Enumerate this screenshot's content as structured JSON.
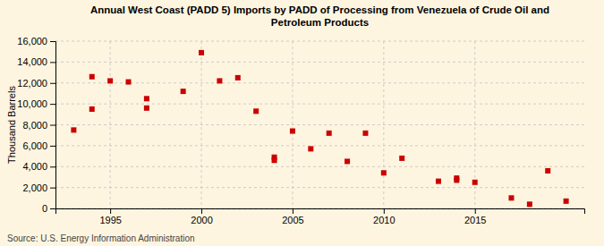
{
  "chart_data": {
    "type": "scatter",
    "title": "Annual West Coast (PADD 5) Imports by PADD of Processing from Venezuela of Crude Oil and\nPetroleum Products",
    "ylabel": "Thousand Barrels",
    "source": "Source: U.S. Energy Information Administration",
    "color": "#cc0000",
    "marker": "square",
    "grid": true,
    "x": [
      1993,
      1994,
      1994,
      1995,
      1996,
      1997,
      1997,
      1999,
      2000,
      2001,
      2002,
      2003,
      2004,
      2004,
      2005,
      2006,
      2007,
      2008,
      2009,
      2010,
      2011,
      2013,
      2014,
      2014,
      2015,
      2017,
      2018,
      2019,
      2020
    ],
    "values": [
      7500,
      12600,
      9500,
      12200,
      12100,
      10500,
      9600,
      11200,
      14900,
      12200,
      12500,
      9300,
      4900,
      4600,
      7400,
      5700,
      7200,
      4500,
      7200,
      3400,
      4800,
      2600,
      2700,
      2900,
      2500,
      1000,
      400,
      3600,
      700
    ],
    "xlim": [
      1992,
      2021
    ],
    "ylim": [
      0,
      16000
    ],
    "xticks": [
      1995,
      2000,
      2005,
      2010,
      2015
    ],
    "yticks": [
      0,
      {
        "value": 2000,
        "label": "2,000"
      },
      {
        "value": 4000,
        "label": "4,000"
      },
      {
        "value": 6000,
        "label": "6,000"
      },
      {
        "value": 8000,
        "label": "8,000"
      },
      {
        "value": 10000,
        "label": "10,000"
      },
      {
        "value": 12000,
        "label": "12,000"
      },
      {
        "value": 14000,
        "label": "14,000"
      },
      {
        "value": 16000,
        "label": "16,000"
      }
    ]
  }
}
